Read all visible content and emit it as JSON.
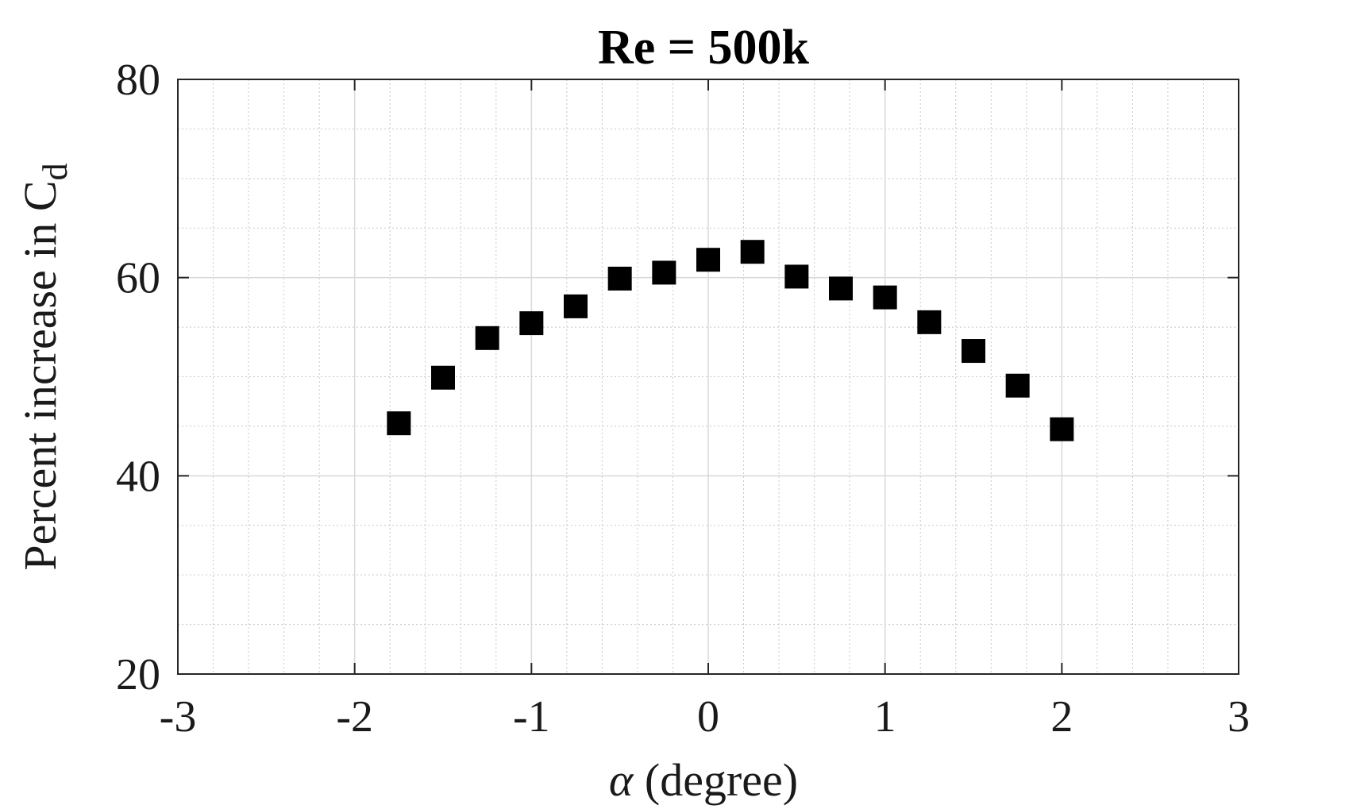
{
  "chart_data": {
    "type": "scatter",
    "title": "Re = 500k",
    "xlabel_symbol": "α",
    "xlabel_rest": " (degree)",
    "ylabel_main": "Percent increase in C",
    "ylabel_sub": "d",
    "xlim": [
      -3,
      3
    ],
    "ylim": [
      20,
      80
    ],
    "xticks": [
      -3,
      -2,
      -1,
      0,
      1,
      2,
      3
    ],
    "yticks": [
      20,
      40,
      60,
      80
    ],
    "xtick_labels": [
      "-3",
      "-2",
      "-1",
      "0",
      "1",
      "2",
      "3"
    ],
    "ytick_labels": [
      "20",
      "40",
      "60",
      "80"
    ],
    "grid": "on",
    "minor_grid": "on",
    "x_minor_step": 0.2,
    "y_minor_step": 5,
    "marker": "square",
    "marker_color": "#000000",
    "series": [
      {
        "x": [
          -1.75,
          -1.5,
          -1.25,
          -1.0,
          -0.75,
          -0.5,
          -0.25,
          0.0,
          0.25,
          0.5,
          0.75,
          1.0,
          1.25,
          1.5,
          1.75,
          2.0
        ],
        "y": [
          45.3,
          49.9,
          53.9,
          55.4,
          57.1,
          59.9,
          60.5,
          61.8,
          62.6,
          60.1,
          58.9,
          58.0,
          55.5,
          52.6,
          49.1,
          44.7
        ]
      }
    ]
  }
}
